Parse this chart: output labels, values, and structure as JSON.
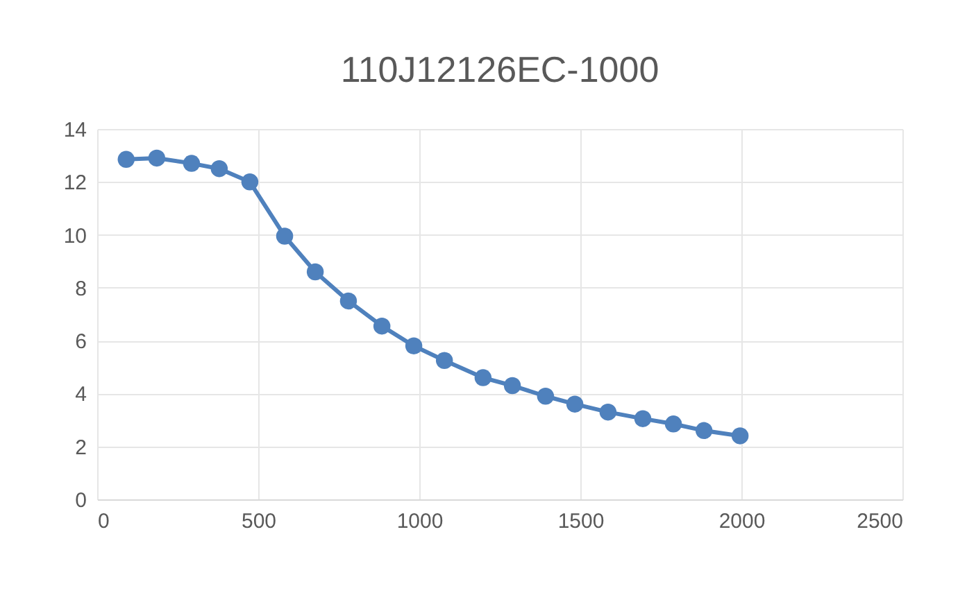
{
  "chart_data": {
    "type": "line",
    "title": "110J12126EC-1000",
    "x": [
      90,
      185,
      293,
      379,
      474,
      582,
      677,
      780,
      884,
      983,
      1078,
      1198,
      1289,
      1392,
      1483,
      1586,
      1694,
      1789,
      1884,
      1996
    ],
    "series": [
      {
        "color": "#4f81bd",
        "values": [
          12.85,
          12.9,
          12.7,
          12.5,
          12.0,
          9.95,
          8.6,
          7.5,
          6.55,
          5.8,
          5.25,
          4.6,
          4.3,
          3.9,
          3.6,
          3.3,
          3.05,
          2.85,
          2.6,
          2.4
        ]
      }
    ],
    "xlim": [
      0,
      2500
    ],
    "xticks": [
      0,
      500,
      1000,
      1500,
      2000,
      2500
    ],
    "ylim": [
      0,
      14
    ],
    "yticks": [
      0,
      2,
      4,
      6,
      8,
      10,
      12,
      14
    ],
    "grid": true,
    "marker": "circle",
    "line_style": "solid",
    "legend": false
  }
}
